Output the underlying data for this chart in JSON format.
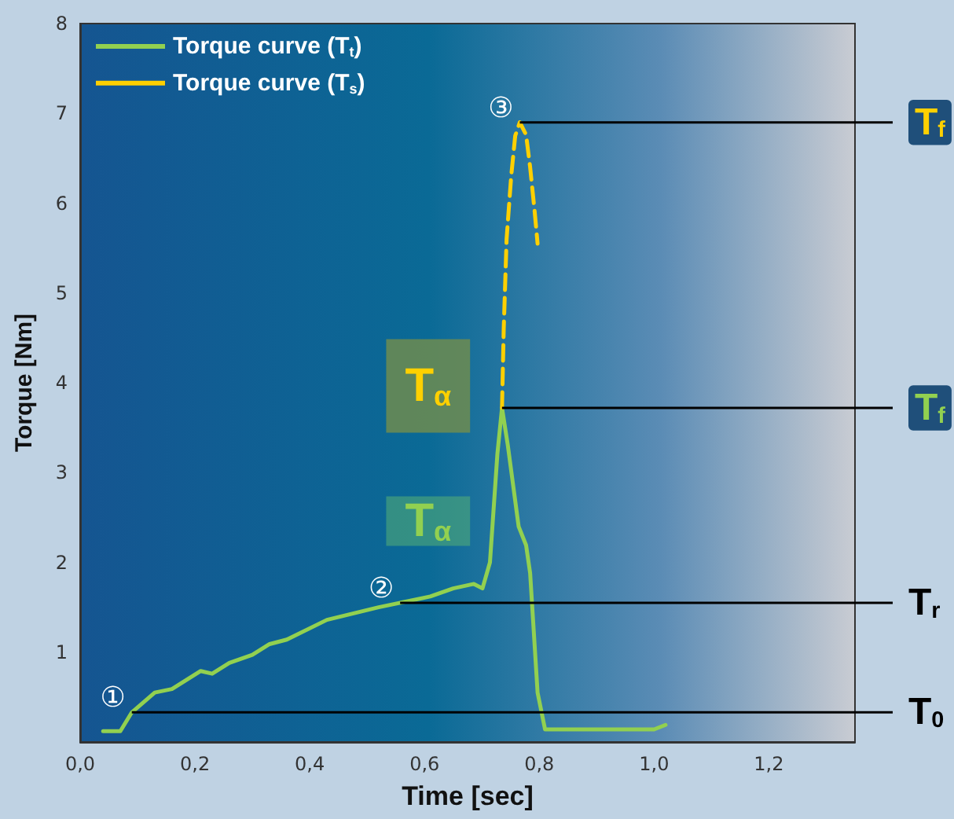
{
  "chart_data": {
    "type": "line",
    "xlabel": "Time [sec]",
    "ylabel": "Torque [Nm]",
    "xlim": [
      0,
      1.35
    ],
    "xticks": [
      {
        "value": 0,
        "label": "0,0"
      },
      {
        "value": 0.2,
        "label": "0,2"
      },
      {
        "value": 0.4,
        "label": "0,4"
      },
      {
        "value": 0.6,
        "label": "0,6"
      },
      {
        "value": 0.8,
        "label": "0,8"
      },
      {
        "value": 1.0,
        "label": "1,0"
      },
      {
        "value": 1.2,
        "label": "1,2"
      }
    ],
    "ylim": [
      0,
      8
    ],
    "yticks": [
      1,
      2,
      3,
      4,
      5,
      6,
      7,
      8
    ],
    "grid": false,
    "legend": "top left",
    "marker": "none",
    "series": [
      {
        "name": "Torque curve (T$_{t}$)",
        "color": "#92d050",
        "line_style": "solid",
        "x": [
          0.04,
          0.07,
          0.09,
          0.13,
          0.16,
          0.21,
          0.23,
          0.26,
          0.3,
          0.33,
          0.36,
          0.43,
          0.52,
          0.61,
          0.65,
          0.686,
          0.701,
          0.714,
          0.727,
          0.735,
          0.745,
          0.764,
          0.777,
          0.784,
          0.797,
          0.81,
          1.0,
          1.02
        ],
        "values": [
          0.12,
          0.12,
          0.33,
          0.55,
          0.59,
          0.79,
          0.76,
          0.88,
          0.97,
          1.09,
          1.14,
          1.36,
          1.5,
          1.62,
          1.71,
          1.76,
          1.71,
          2.0,
          3.21,
          3.72,
          3.31,
          2.4,
          2.19,
          1.88,
          0.55,
          0.14,
          0.14,
          0.19
        ]
      },
      {
        "name": "Torque curve (T$_{s}$)",
        "color": "#ffd000",
        "line_style": "dashed",
        "x": [
          0.735,
          0.738,
          0.743,
          0.751,
          0.758,
          0.766,
          0.777,
          0.784,
          0.792,
          0.797
        ],
        "values": [
          3.72,
          4.6,
          5.6,
          6.3,
          6.75,
          6.9,
          6.76,
          6.4,
          5.9,
          5.55
        ]
      }
    ],
    "annotations": [
      "①",
      "②",
      "③",
      "T$_{α}$",
      "T$_{α}$"
    ],
    "ref_lines": [
      {
        "axis": "y",
        "value": 6.9,
        "label": "T$_{f}$"
      },
      {
        "axis": "y",
        "value": 3.72,
        "label": "T$_{f}$"
      },
      {
        "axis": "y",
        "value": 1.55,
        "label": "T$_{r}$"
      },
      {
        "axis": "y",
        "value": 0.33,
        "label": "T$_{0}$"
      }
    ]
  }
}
